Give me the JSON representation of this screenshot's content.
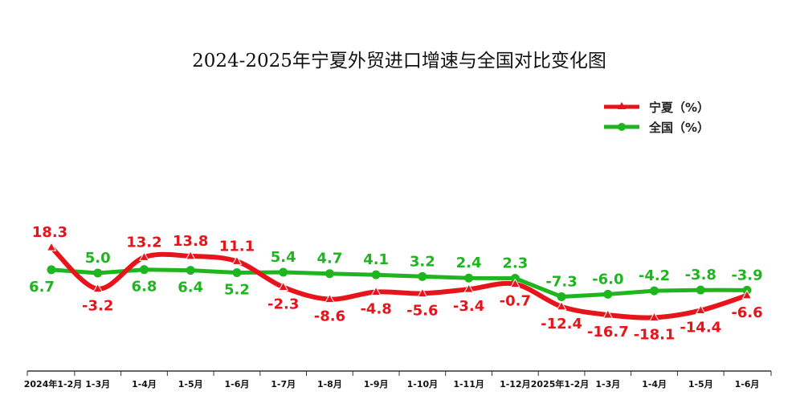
{
  "chart_data": {
    "type": "line",
    "title": "2024-2025年宁夏外贸进口增速与全国对比变化图",
    "categories": [
      "2024年1-2月",
      "1-3月",
      "1-4月",
      "1-5月",
      "1-6月",
      "1-7月",
      "1-8月",
      "1-9月",
      "1-10月",
      "1-11月",
      "1-12月",
      "2025年1-2月",
      "1-3月",
      "1-4月",
      "1-5月",
      "1-6月"
    ],
    "series": [
      {
        "name": "宁夏（%）",
        "color": "#e8141b",
        "marker": "triangle",
        "values": [
          18.3,
          -3.2,
          13.2,
          13.8,
          11.1,
          -2.3,
          -8.6,
          -4.8,
          -5.6,
          -3.4,
          -0.7,
          -12.4,
          -16.7,
          -18.1,
          -14.4,
          -6.6
        ],
        "labels": [
          "18.3",
          "-3.2",
          "13.2",
          "13.8",
          "11.1",
          "-2.3",
          "-8.6",
          "-4.8",
          "-5.6",
          "-3.4",
          "-0.7",
          "-12.4",
          "-16.7",
          "-18.1",
          "-14.4",
          "-6.6"
        ]
      },
      {
        "name": "全国（%）",
        "color": "#1fb51f",
        "marker": "circle",
        "values": [
          6.7,
          5.0,
          6.8,
          6.4,
          5.2,
          5.4,
          4.7,
          4.1,
          3.2,
          2.4,
          2.3,
          -7.3,
          -6.0,
          -4.2,
          -3.8,
          -3.9
        ],
        "labels": [
          "6.7",
          "5.0",
          "6.8",
          "6.4",
          "5.2",
          "5.4",
          "4.7",
          "4.1",
          "3.2",
          "2.4",
          "2.3",
          "-7.3",
          "-6.0",
          "-4.2",
          "-3.8",
          "-3.9"
        ]
      }
    ],
    "legend_position": "top-right",
    "grid": false
  }
}
